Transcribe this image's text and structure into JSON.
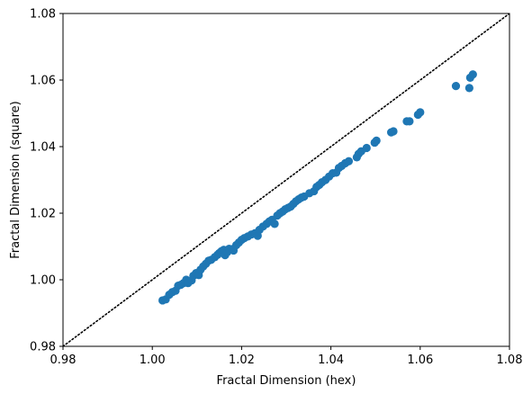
{
  "chart_data": {
    "type": "scatter",
    "title": "",
    "xlabel": "Fractal Dimension (hex)",
    "ylabel": "Fractal Dimension (square)",
    "xlim": [
      0.98,
      1.08
    ],
    "ylim": [
      0.98,
      1.08
    ],
    "xticks": [
      0.98,
      1.0,
      1.02,
      1.04,
      1.06,
      1.08
    ],
    "yticks": [
      0.98,
      1.0,
      1.02,
      1.04,
      1.06,
      1.08
    ],
    "xtick_labels": [
      "0.98",
      "1.00",
      "1.02",
      "1.04",
      "1.06",
      "1.08"
    ],
    "ytick_labels": [
      "0.98",
      "1.00",
      "1.02",
      "1.04",
      "1.06",
      "1.08"
    ],
    "grid": false,
    "legend": "none",
    "reference_line": {
      "style": "dotted",
      "color": "#000000",
      "from": [
        0.98,
        0.98
      ],
      "to": [
        1.08,
        1.08
      ]
    },
    "series": [
      {
        "color": "#1f77b4",
        "points": [
          [
            1.0023,
            0.9938
          ],
          [
            1.003,
            0.9941
          ],
          [
            1.0038,
            0.9955
          ],
          [
            1.0045,
            0.9963
          ],
          [
            1.0052,
            0.9967
          ],
          [
            1.0058,
            0.9982
          ],
          [
            1.0064,
            0.9985
          ],
          [
            1.007,
            0.999
          ],
          [
            1.0076,
            1.0
          ],
          [
            1.008,
            0.999
          ],
          [
            1.0088,
            0.9998
          ],
          [
            1.0092,
            1.0012
          ],
          [
            1.0098,
            1.002
          ],
          [
            1.0104,
            1.0014
          ],
          [
            1.0108,
            1.003
          ],
          [
            1.0114,
            1.004
          ],
          [
            1.012,
            1.0048
          ],
          [
            1.0126,
            1.0057
          ],
          [
            1.0132,
            1.006
          ],
          [
            1.014,
            1.0068
          ],
          [
            1.0146,
            1.0075
          ],
          [
            1.015,
            1.008
          ],
          [
            1.0155,
            1.0086
          ],
          [
            1.016,
            1.009
          ],
          [
            1.0163,
            1.0074
          ],
          [
            1.0168,
            1.0083
          ],
          [
            1.0172,
            1.0093
          ],
          [
            1.0178,
            1.0092
          ],
          [
            1.0182,
            1.0088
          ],
          [
            1.0188,
            1.0104
          ],
          [
            1.0194,
            1.0112
          ],
          [
            1.02,
            1.012
          ],
          [
            1.0206,
            1.0125
          ],
          [
            1.0214,
            1.013
          ],
          [
            1.0222,
            1.0136
          ],
          [
            1.023,
            1.014
          ],
          [
            1.0236,
            1.0132
          ],
          [
            1.024,
            1.015
          ],
          [
            1.0248,
            1.016
          ],
          [
            1.0256,
            1.0168
          ],
          [
            1.0262,
            1.0175
          ],
          [
            1.0268,
            1.018
          ],
          [
            1.0274,
            1.0168
          ],
          [
            1.028,
            1.0193
          ],
          [
            1.0286,
            1.02
          ],
          [
            1.0292,
            1.0205
          ],
          [
            1.0298,
            1.0212
          ],
          [
            1.0304,
            1.0216
          ],
          [
            1.031,
            1.022
          ],
          [
            1.0316,
            1.0228
          ],
          [
            1.0322,
            1.0236
          ],
          [
            1.0328,
            1.0242
          ],
          [
            1.0334,
            1.0247
          ],
          [
            1.034,
            1.025
          ],
          [
            1.0352,
            1.026
          ],
          [
            1.0362,
            1.0266
          ],
          [
            1.0368,
            1.0279
          ],
          [
            1.0374,
            1.0285
          ],
          [
            1.038,
            1.0293
          ],
          [
            1.0388,
            1.03
          ],
          [
            1.0396,
            1.031
          ],
          [
            1.0404,
            1.032
          ],
          [
            1.0412,
            1.0322
          ],
          [
            1.0418,
            1.0336
          ],
          [
            1.0424,
            1.0342
          ],
          [
            1.0432,
            1.035
          ],
          [
            1.044,
            1.0356
          ],
          [
            1.0458,
            1.0368
          ],
          [
            1.0462,
            1.0378
          ],
          [
            1.0468,
            1.0386
          ],
          [
            1.048,
            1.0396
          ],
          [
            1.0498,
            1.0412
          ],
          [
            1.0502,
            1.0418
          ],
          [
            1.0535,
            1.0443
          ],
          [
            1.054,
            1.0446
          ],
          [
            1.057,
            1.0476
          ],
          [
            1.0576,
            1.0476
          ],
          [
            1.0595,
            1.0496
          ],
          [
            1.06,
            1.0503
          ],
          [
            1.068,
            1.0582
          ],
          [
            1.071,
            1.0576
          ],
          [
            1.0712,
            1.0607
          ],
          [
            1.0718,
            1.0617
          ]
        ]
      }
    ]
  }
}
